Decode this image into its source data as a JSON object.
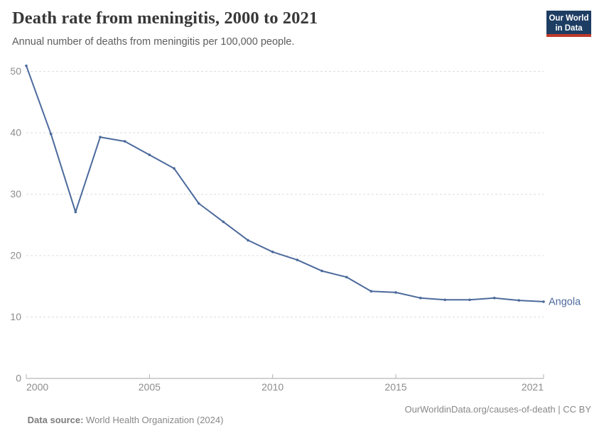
{
  "header": {
    "title": "Death rate from meningitis, 2000 to 2021",
    "subtitle": "Annual number of deaths from meningitis per 100,000 people.",
    "logo": {
      "line1": "Our World",
      "line2": "in Data"
    }
  },
  "footer": {
    "source_label": "Data source:",
    "source_text": " World Health Organization (2024)",
    "link_text": "OurWorldinData.org/causes-of-death | CC BY"
  },
  "colors": {
    "series_line": "#4c6a9c",
    "logo_navy": "#1d3d63",
    "logo_red": "#c0392b",
    "gridline": "#dddddd",
    "axis_line": "#a5a5a5",
    "tick_mark": "#b3b3b3",
    "axis_label": "#8c8c8c",
    "title_text": "#383838",
    "subtitle_text": "#5d5d5d",
    "footer_text": "#888888"
  },
  "chart_data": {
    "type": "line",
    "title": "Death rate from meningitis, 2000 to 2021",
    "subtitle": "Annual number of deaths from meningitis per 100,000 people.",
    "xlabel": "",
    "ylabel": "",
    "x": [
      2000,
      2001,
      2002,
      2003,
      2004,
      2005,
      2006,
      2007,
      2008,
      2009,
      2010,
      2011,
      2012,
      2013,
      2014,
      2015,
      2016,
      2017,
      2018,
      2019,
      2020,
      2021
    ],
    "series": [
      {
        "name": "Angola",
        "values": [
          50.9,
          39.8,
          27.1,
          39.3,
          38.6,
          36.4,
          34.2,
          28.5,
          25.5,
          22.5,
          20.6,
          19.3,
          17.5,
          16.5,
          14.2,
          14.0,
          13.1,
          12.8,
          12.8,
          13.1,
          12.7,
          12.5
        ]
      }
    ],
    "xlim": [
      2000,
      2021
    ],
    "ylim": [
      0,
      50
    ],
    "y_ticks": [
      0,
      10,
      20,
      30,
      40,
      50
    ],
    "x_ticks": [
      2000,
      2005,
      2010,
      2015,
      2021
    ],
    "grid": "horizontal-dashed",
    "legend": "end-of-line-label",
    "end_label": "Angola"
  }
}
